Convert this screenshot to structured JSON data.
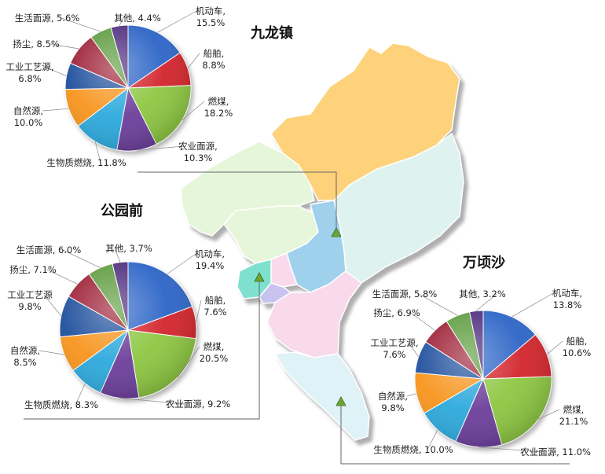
{
  "colors": {
    "机动车": "#2b63c6",
    "船舶": "#d2232a",
    "燃煤": "#8cc63f",
    "农业面源": "#6a3d9a",
    "生物质燃烧": "#29a8dc",
    "自然源": "#f7941d",
    "工业工艺源": "#1b4e9b",
    "扬尘": "#9b1b30",
    "生活面源": "#5a9a3a",
    "其他": "#4b2a7b",
    "map_north": "#fdd27a",
    "map_light_green": "#e6f6da",
    "map_teal": "#def3ef",
    "map_blue": "#9fd1ec",
    "map_pink": "#f9d9ec",
    "map_light_blue": "#dff2f8",
    "map_aqua": "#7fe0cf",
    "map_lavender": "#c7c2ee",
    "site_marker": "#6aa634"
  },
  "chart_data": [
    {
      "type": "pie",
      "title": "九龙镇",
      "categories": [
        "机动车",
        "船舶",
        "燃煤",
        "农业面源",
        "生物质燃烧",
        "自然源",
        "工业工艺源",
        "扬尘",
        "生活面源",
        "其他"
      ],
      "values": [
        15.5,
        8.8,
        18.2,
        10.3,
        11.8,
        10.0,
        6.8,
        8.5,
        5.6,
        4.4
      ],
      "labels": [
        "机动车,|15.5%",
        "船舶,|8.8%",
        "燃煤,|18.2%",
        "农业面源,|10.3%",
        "生物质燃烧, 11.8%",
        "自然源,|10.0%",
        "工业工艺源,|6.8%",
        "扬尘, 8.5%",
        "生活面源, 5.6%",
        "其他, 4.4%"
      ]
    },
    {
      "type": "pie",
      "title": "公园前",
      "categories": [
        "机动车",
        "船舶",
        "燃煤",
        "农业面源",
        "生物质燃烧",
        "自然源",
        "工业工艺源",
        "扬尘",
        "生活面源",
        "其他"
      ],
      "values": [
        19.4,
        7.6,
        20.5,
        9.2,
        8.3,
        8.5,
        9.8,
        7.1,
        6.0,
        3.7
      ],
      "labels": [
        "机动车,|19.4%",
        "船舶,|7.6%",
        "燃煤,|20.5%",
        "农业面源, 9.2%",
        "生物质燃烧, 8.3%",
        "自然源,|8.5%",
        "工业工艺源|9.8%",
        "扬尘, 7.1%",
        "生活面源, 6.0%",
        "其他, 3.7%"
      ]
    },
    {
      "type": "pie",
      "title": "万顷沙",
      "categories": [
        "机动车",
        "船舶",
        "燃煤",
        "农业面源",
        "生物质燃烧",
        "自然源",
        "工业工艺源",
        "扬尘",
        "生活面源",
        "其他"
      ],
      "values": [
        13.8,
        10.6,
        21.1,
        11.0,
        10.0,
        9.8,
        7.6,
        6.9,
        5.8,
        3.2
      ],
      "labels": [
        "机动车,|13.8%",
        "船舶,|10.6%",
        "燃煤,|21.1%",
        "农业面源, 11.0%",
        "生物质燃烧, 10.0%",
        "自然源,|9.8%",
        "工业工艺源,|7.6%",
        "扬尘, 6.9%",
        "生活面源, 5.8%",
        "其他, 3.2%"
      ]
    }
  ]
}
